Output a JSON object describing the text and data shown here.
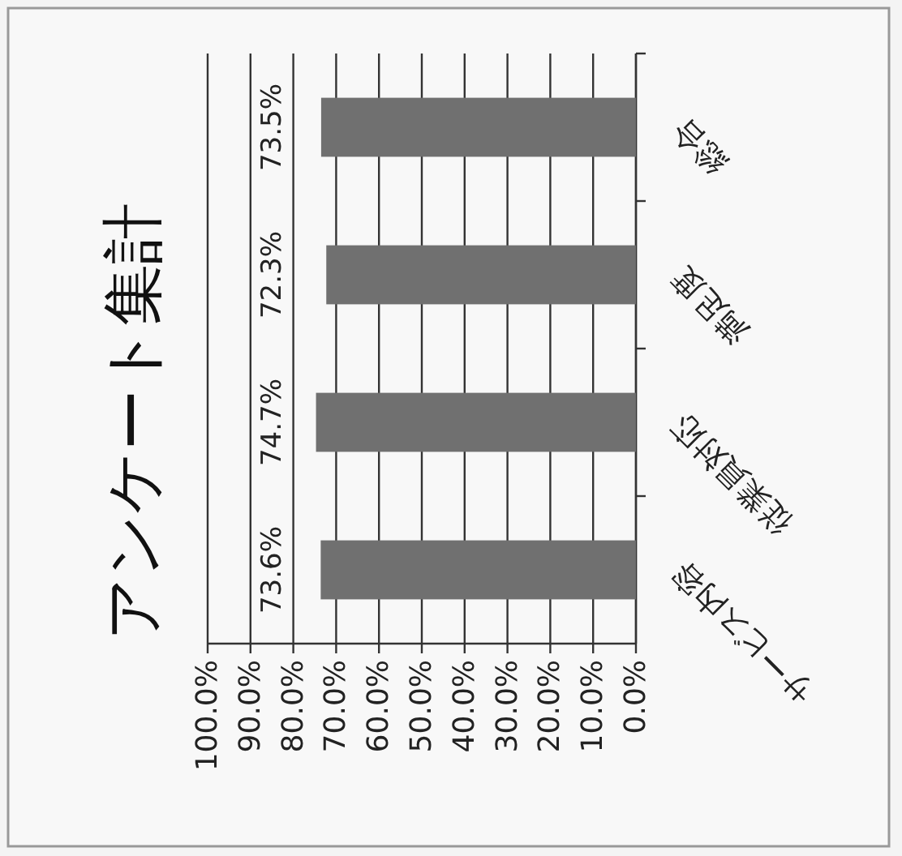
{
  "chart_data": {
    "type": "bar",
    "orientation": "horizontal",
    "title": "アンケート集計",
    "categories": [
      "総合",
      "満足度",
      "従業員対応",
      "サービス内容"
    ],
    "values": [
      73.5,
      72.3,
      74.7,
      73.6
    ],
    "value_labels": [
      "73.5%",
      "72.3%",
      "74.7%",
      "73.6%"
    ],
    "color": "#707070",
    "xlim": [
      100,
      0
    ],
    "xticks": [
      {
        "value": 100,
        "label": "100.0%"
      },
      {
        "value": 90,
        "label": "90.0%"
      },
      {
        "value": 80,
        "label": "80.0%"
      },
      {
        "value": 70,
        "label": "70.0%"
      },
      {
        "value": 60,
        "label": "60.0%"
      },
      {
        "value": 50,
        "label": "50.0%"
      },
      {
        "value": 40,
        "label": "40.0%"
      },
      {
        "value": 30,
        "label": "30.0%"
      },
      {
        "value": 20,
        "label": "20.0%"
      },
      {
        "value": 10,
        "label": "10.0%"
      },
      {
        "value": 0,
        "label": "0.0%"
      }
    ],
    "grid": "x"
  }
}
